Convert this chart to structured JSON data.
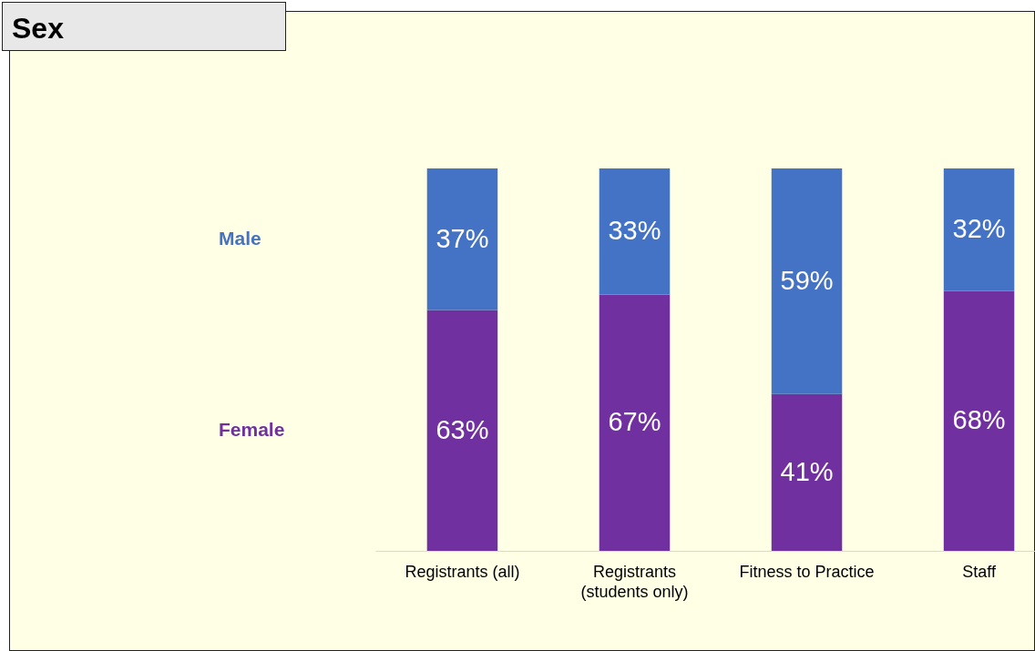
{
  "chart_data": {
    "type": "bar",
    "title": "Sex",
    "categories": [
      "Registrants (all)",
      "Registrants (students only)",
      "Fitness to Practice",
      "Staff"
    ],
    "stacked": true,
    "ylim": [
      0,
      100
    ],
    "tick_labels": "x",
    "legend": "left",
    "series": [
      {
        "name": "Female",
        "color": "#7030a0",
        "values": [
          63,
          67,
          41,
          68
        ],
        "value_labels": [
          "63%",
          "67%",
          "41%",
          "68%"
        ]
      },
      {
        "name": "Male",
        "color": "#4472c4",
        "values": [
          37,
          33,
          59,
          32
        ],
        "value_labels": [
          "37%",
          "33%",
          "59%",
          "32%"
        ]
      }
    ]
  }
}
